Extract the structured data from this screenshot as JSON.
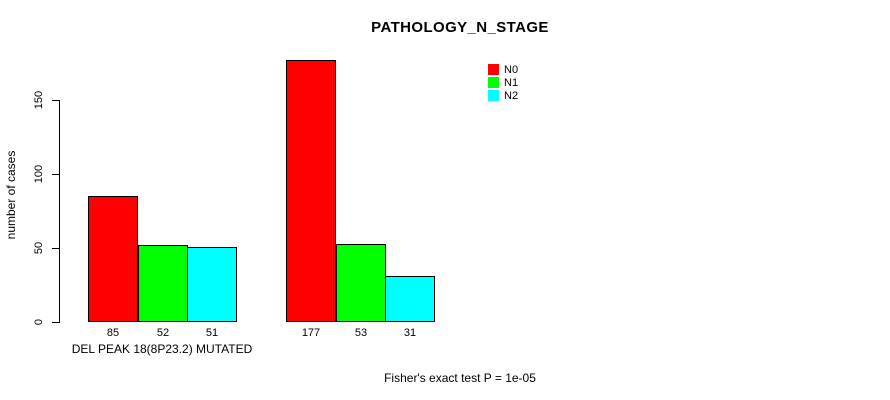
{
  "chart_data": {
    "type": "bar",
    "title": "PATHOLOGY_N_STAGE",
    "ylabel": "number of cases",
    "xlabel": "",
    "groups": [
      "DEL PEAK 18(8P23.2) MUTATED",
      ""
    ],
    "series": [
      {
        "name": "N0",
        "color": "#ff0000",
        "values": [
          85,
          177
        ]
      },
      {
        "name": "N1",
        "color": "#00ff00",
        "values": [
          52,
          53
        ]
      },
      {
        "name": "N2",
        "color": "#00ffff",
        "values": [
          51,
          31
        ]
      }
    ],
    "bar_value_labels": [
      [
        85,
        52,
        51
      ],
      [
        177,
        53,
        31
      ]
    ],
    "yticks": [
      0,
      50,
      100,
      150
    ],
    "ylim": [
      0,
      180
    ],
    "grid": false,
    "legend_position": "top-right",
    "legend_entries": [
      "N0",
      "N1",
      "N2"
    ],
    "annotation": "Fisher's exact test P = 1e-05",
    "axis_color": "#000000",
    "background_color": "#ffffff"
  }
}
